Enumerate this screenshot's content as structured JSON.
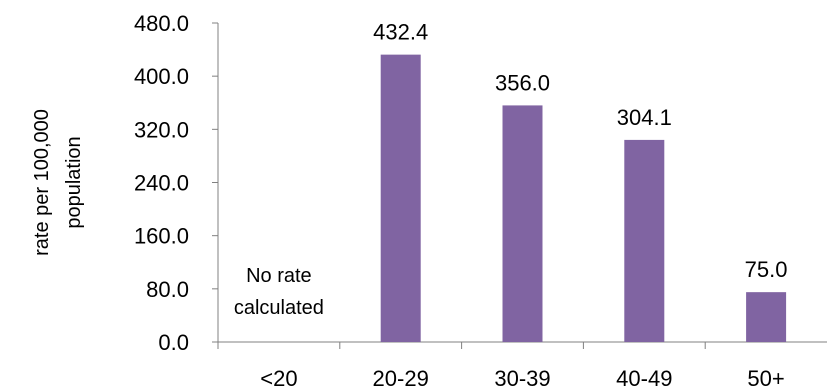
{
  "chart_data": {
    "type": "bar",
    "title": "",
    "xlabel": "",
    "ylabel_lines": [
      "rate per 100,000",
      "population"
    ],
    "categories": [
      "<20",
      "20-29",
      "30-39",
      "40-49",
      "50+"
    ],
    "series": [
      {
        "values": [
          null,
          432.4,
          356.0,
          304.1,
          75.0
        ],
        "data_labels": [
          "",
          "432.4",
          "356.0",
          "304.1",
          "75.0"
        ],
        "color": "#8064A2"
      }
    ],
    "annotations": [
      {
        "category": "<20",
        "lines": [
          "No rate",
          "calculated"
        ]
      }
    ],
    "ylim": [
      0,
      480
    ],
    "yticks": [
      0,
      80,
      160,
      240,
      320,
      400,
      480
    ],
    "ytick_labels": [
      "0.0",
      "80.0",
      "160.0",
      "240.0",
      "320.0",
      "400.0",
      "480.0"
    ],
    "grid": false,
    "legend": "none",
    "axis_color": "#808080"
  }
}
